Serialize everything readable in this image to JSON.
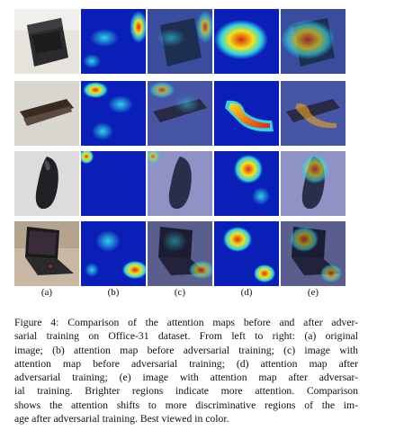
{
  "figure": {
    "column_labels": [
      "(a)",
      "(b)",
      "(c)",
      "(d)",
      "(e)"
    ],
    "rows": [
      {
        "object": "backpack"
      },
      {
        "object": "stapler"
      },
      {
        "object": "mouse"
      },
      {
        "object": "laptop"
      }
    ],
    "colors": {
      "heatmap_low": "#0a1fb8",
      "heatmap_mid": "#2fd4e8",
      "heatmap_high": "#e0261b",
      "heatmap_warm": "#f2e316"
    }
  },
  "caption": {
    "lines": [
      "Figure 4: Comparison of the attention maps before and after adver-",
      "sarial training on Office-31 dataset. From left to right: (a) original",
      "image; (b) attention map before adversarial training; (c) image with",
      "attention map before adversarial training; (d) attention map after",
      "adversarial training; (e) image with attention map after adversar-",
      "ial training. Brighter regions indicate more attention. Comparison",
      "shows the attention shifts to more discriminative regions of the im-",
      "age after adversarial training. Best viewed in color."
    ]
  }
}
